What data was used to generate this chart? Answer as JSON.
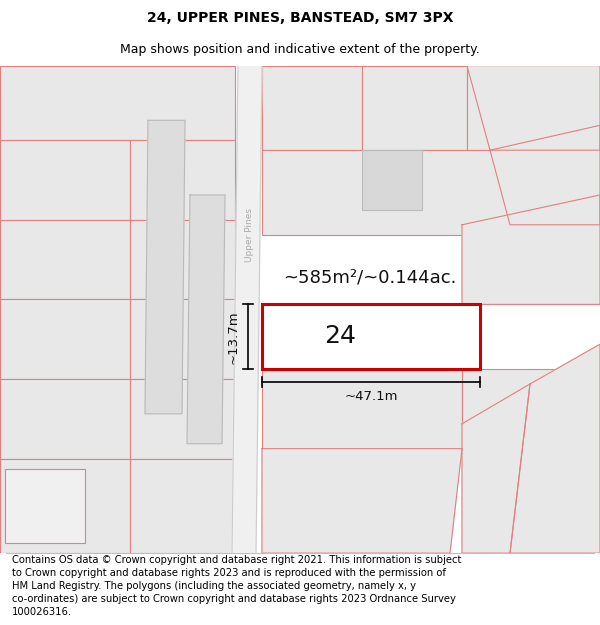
{
  "title": "24, UPPER PINES, BANSTEAD, SM7 3PX",
  "subtitle": "Map shows position and indicative extent of the property.",
  "footer": "Contains OS data © Crown copyright and database right 2021. This information is subject\nto Crown copyright and database rights 2023 and is reproduced with the permission of\nHM Land Registry. The polygons (including the associated geometry, namely x, y\nco-ordinates) are subject to Crown copyright and database rights 2023 Ordnance Survey\n100026316.",
  "bg_color": "#ffffff",
  "map_bg": "#ffffff",
  "plot_fill": "#e8e8e8",
  "plot_edge": "#e08080",
  "highlight_color": "#cc0000",
  "highlight_fill": "#ffffff",
  "road_fill": "#ffffff",
  "road_edge": "#aaaaaa",
  "street_label_color": "#aaaaaa",
  "label_24": "24",
  "area_label": "~585m²/~0.144ac.",
  "width_label": "~47.1m",
  "height_label": "~13.7m",
  "street_label": "Upper Pines",
  "title_fontsize": 10,
  "subtitle_fontsize": 9,
  "footer_fontsize": 7.2,
  "annot_fontsize": 13,
  "num_fontsize": 18,
  "dim_fontsize": 9.5
}
